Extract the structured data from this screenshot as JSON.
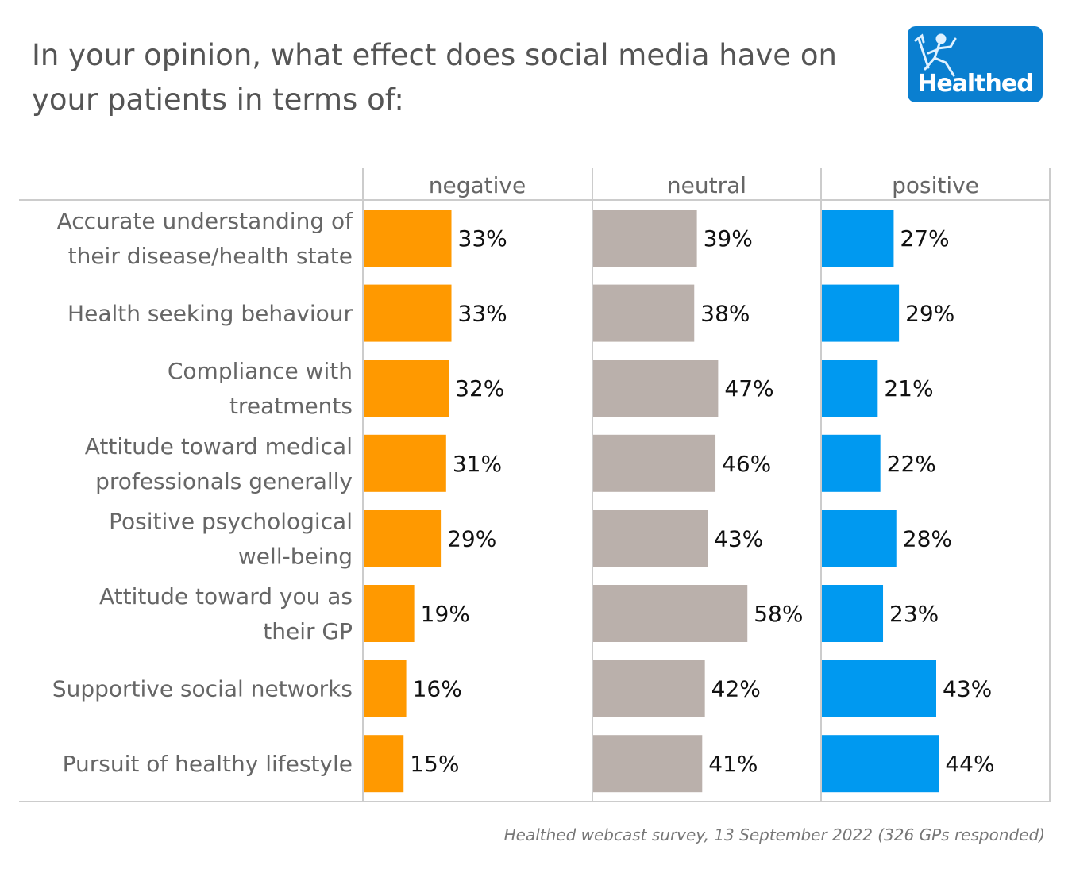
{
  "title": "In your opinion, what effect does social media have on your patients in terms of:",
  "logo": {
    "text": "Healthed",
    "background": "#0a7fd0"
  },
  "footer": "Healthed webcast survey, 13 September 2022 (326 GPs responded)",
  "chart_data": {
    "type": "bar",
    "orientation": "horizontal",
    "layout": "small-multiples",
    "title": "In your opinion, what effect does social media have on your patients in terms of:",
    "categories": [
      "Accurate understanding of their disease/health state",
      "Health seeking behaviour",
      "Compliance with treatments",
      "Attitude toward medical professionals generally",
      "Positive psychological well-being",
      "Attitude toward you as their GP",
      "Supportive social networks",
      "Pursuit of healthy lifestyle"
    ],
    "category_lines": [
      [
        "Accurate understanding of",
        "their disease/health state"
      ],
      [
        "Health seeking behaviour"
      ],
      [
        "Compliance with",
        "treatments"
      ],
      [
        "Attitude toward medical",
        "professionals generally"
      ],
      [
        "Positive psychological",
        "well-being"
      ],
      [
        "Attitude toward you as",
        "their GP"
      ],
      [
        "Supportive social networks"
      ],
      [
        "Pursuit of healthy lifestyle"
      ]
    ],
    "series": [
      {
        "name": "negative",
        "color": "#ff9900",
        "values": [
          33,
          33,
          32,
          31,
          29,
          19,
          16,
          15
        ]
      },
      {
        "name": "neutral",
        "color": "#bab0ab",
        "values": [
          39,
          38,
          47,
          46,
          43,
          58,
          42,
          41
        ]
      },
      {
        "name": "positive",
        "color": "#0099f0",
        "values": [
          27,
          29,
          21,
          22,
          28,
          23,
          43,
          44
        ]
      }
    ],
    "value_format": "percent",
    "xlim": [
      0,
      86
    ],
    "grid": false,
    "legend": "none",
    "xlabel": "",
    "ylabel": ""
  }
}
